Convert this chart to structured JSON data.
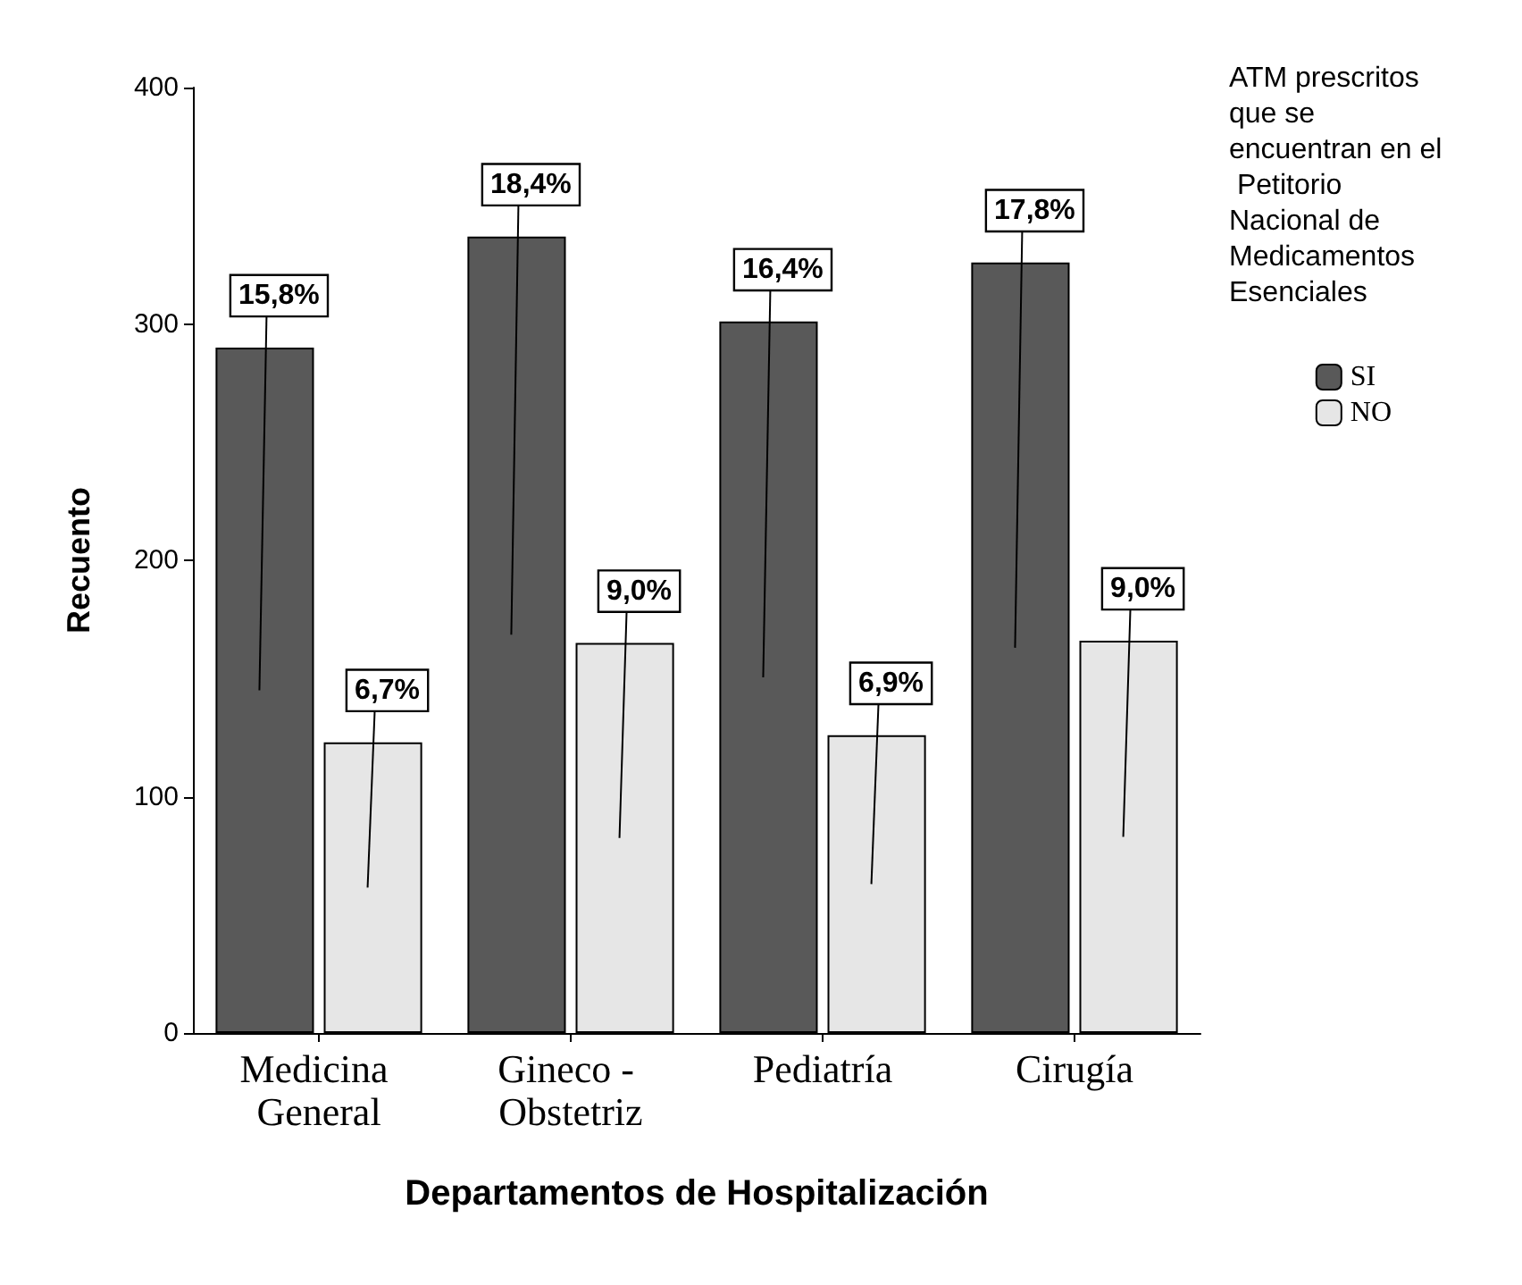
{
  "chart_data": {
    "type": "bar",
    "xlabel": "Departamentos de Hospitalización",
    "ylabel": "Recuento",
    "legend_title": "ATM prescritos que se encuentran en el Petitorio Nacional de Medicamentos Esenciales",
    "categories": [
      "Medicina General",
      "Gineco - Obstetriz",
      "Pediatría",
      "Cirugía"
    ],
    "series": [
      {
        "name": "SI",
        "color": "#595959",
        "values": [
          290,
          337,
          301,
          326
        ]
      },
      {
        "name": "NO",
        "color": "#e6e6e6",
        "values": [
          123,
          165,
          126,
          166
        ]
      }
    ],
    "annotations": [
      {
        "text": "15,8%",
        "x": "Medicina General",
        "y": 290
      },
      {
        "text": "6,7%",
        "x": "Medicina General",
        "y": 123
      },
      {
        "text": "18,4%",
        "x": "Gineco - Obstetriz",
        "y": 337
      },
      {
        "text": "9,0%",
        "x": "Gineco - Obstetriz",
        "y": 165
      },
      {
        "text": "16,4%",
        "x": "Pediatría",
        "y": 301
      },
      {
        "text": "6,9%",
        "x": "Pediatría",
        "y": 126
      },
      {
        "text": "17,8%",
        "x": "Cirugía",
        "y": 326
      },
      {
        "text": "9,0%",
        "x": "Cirugía",
        "y": 166
      }
    ],
    "ylim": [
      0,
      400
    ],
    "yticks": [
      0,
      100,
      200,
      300,
      400
    ],
    "grid": false,
    "legend": "top right"
  }
}
